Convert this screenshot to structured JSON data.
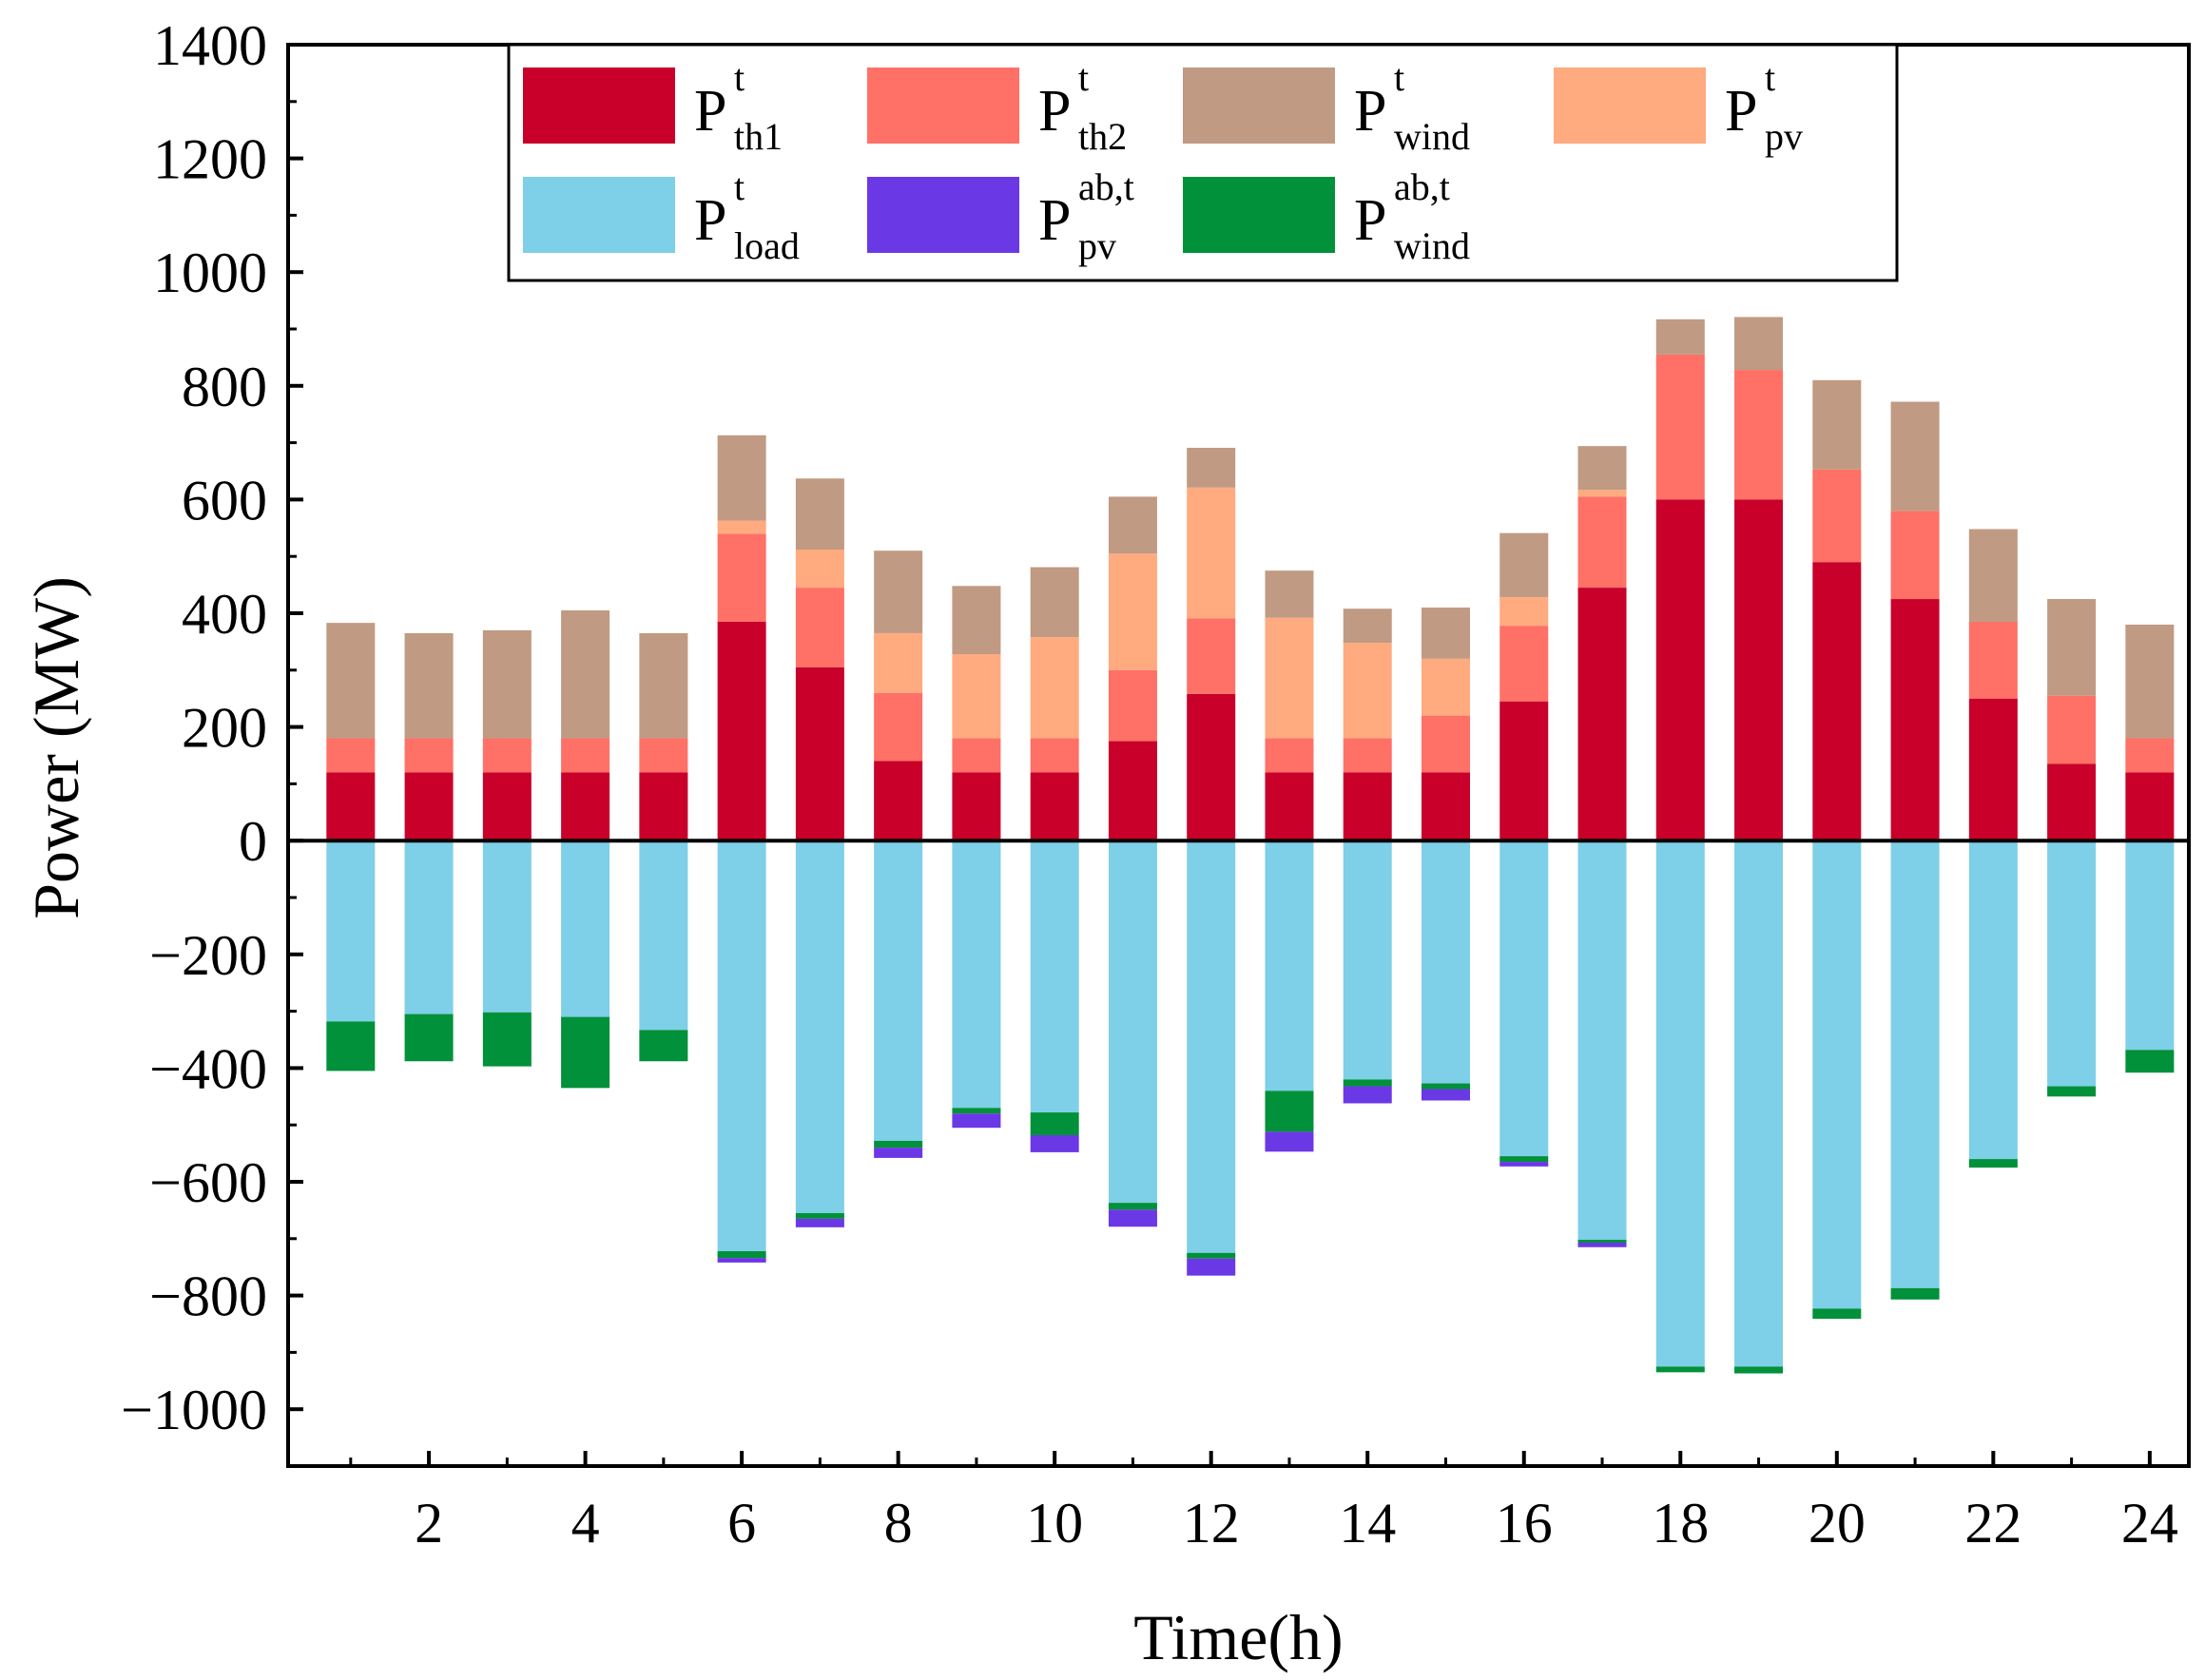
{
  "chart_data": {
    "type": "bar",
    "stacked": true,
    "xlabel": "Time(h)",
    "ylabel": "Power (MW)",
    "x": [
      1,
      2,
      3,
      4,
      5,
      6,
      7,
      8,
      9,
      10,
      11,
      12,
      13,
      14,
      15,
      16,
      17,
      18,
      19,
      20,
      21,
      22,
      23,
      24
    ],
    "xticks": [
      2,
      4,
      6,
      8,
      10,
      12,
      14,
      16,
      18,
      20,
      22,
      24
    ],
    "xtick_labels": [
      "2",
      "4",
      "6",
      "8",
      "10",
      "12",
      "14",
      "16",
      "18",
      "20",
      "22",
      "24"
    ],
    "xlim": [
      0.2,
      24.5
    ],
    "ylim": [
      -1100,
      1400
    ],
    "yticks": [
      -1000,
      -800,
      -600,
      -400,
      -200,
      0,
      200,
      400,
      600,
      800,
      1000,
      1200,
      1400
    ],
    "ytick_labels": [
      "−1000",
      "−800",
      "−600",
      "−400",
      "−200",
      "0",
      "200",
      "400",
      "600",
      "800",
      "1000",
      "1200",
      "1400"
    ],
    "legend": {
      "location": "top",
      "columns": 4
    },
    "series": [
      {
        "key": "th1",
        "base": "P",
        "sup": "t",
        "sub": "th1",
        "color": "#C8002A",
        "values": [
          120,
          120,
          120,
          120,
          120,
          385,
          305,
          140,
          120,
          120,
          175,
          258,
          120,
          120,
          120,
          245,
          445,
          600,
          600,
          490,
          425,
          250,
          135,
          120
        ]
      },
      {
        "key": "th2",
        "base": "P",
        "sup": "t",
        "sub": "th2",
        "color": "#FF7066",
        "values": [
          60,
          60,
          60,
          60,
          60,
          155,
          140,
          120,
          60,
          60,
          125,
          133,
          60,
          60,
          100,
          133,
          160,
          255,
          228,
          163,
          155,
          135,
          120,
          60
        ]
      },
      {
        "key": "pv",
        "base": "P",
        "sup": "t",
        "sub": "pv",
        "color": "#FFAA7F",
        "values": [
          0,
          0,
          0,
          0,
          0,
          23,
          67,
          105,
          148,
          178,
          205,
          230,
          212,
          168,
          100,
          50,
          12,
          0,
          0,
          0,
          0,
          0,
          0,
          0
        ]
      },
      {
        "key": "wind",
        "base": "P",
        "sup": "t",
        "sub": "wind",
        "color": "#C09A82",
        "values": [
          203,
          185,
          190,
          225,
          185,
          150,
          125,
          145,
          120,
          123,
          100,
          70,
          83,
          60,
          90,
          113,
          77,
          62,
          93,
          157,
          192,
          163,
          170,
          200
        ]
      },
      {
        "key": "load",
        "base": "P",
        "sup": "t",
        "sub": "load",
        "color": "#7ECFE8",
        "values": [
          -318,
          -305,
          -302,
          -310,
          -333,
          -722,
          -655,
          -528,
          -470,
          -478,
          -637,
          -725,
          -440,
          -420,
          -427,
          -555,
          -702,
          -925,
          -925,
          -823,
          -787,
          -560,
          -432,
          -368
        ]
      },
      {
        "key": "pv_ab",
        "base": "P",
        "sup": "ab,t",
        "sub": "pv",
        "color": "#6B38E6",
        "values": [
          0,
          0,
          0,
          0,
          0,
          -8,
          -15,
          -18,
          -25,
          -30,
          -30,
          -30,
          -35,
          -30,
          -20,
          -8,
          -8,
          0,
          0,
          0,
          0,
          0,
          0,
          0
        ]
      },
      {
        "key": "wind_ab",
        "base": "P",
        "sup": "ab,t",
        "sub": "wind",
        "color": "#00913A",
        "values": [
          -87,
          -83,
          -95,
          -125,
          -55,
          -12,
          -10,
          -12,
          -10,
          -40,
          -12,
          -10,
          -72,
          -12,
          -10,
          -10,
          -5,
          -10,
          -12,
          -18,
          -20,
          -15,
          -18,
          -40
        ]
      }
    ],
    "stack_order": {
      "positive": [
        "th1",
        "th2",
        "pv",
        "wind"
      ],
      "negative": [
        "load",
        "wind_ab",
        "pv_ab"
      ]
    },
    "legend_order": [
      "th1",
      "th2",
      "wind",
      "pv",
      "load",
      "pv_ab",
      "wind_ab"
    ]
  }
}
